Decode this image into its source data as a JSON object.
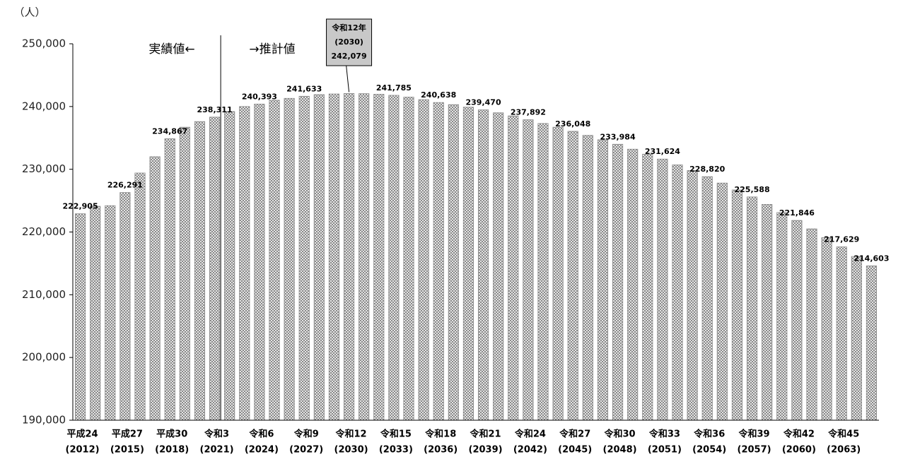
{
  "chart_data": {
    "type": "bar",
    "unit_label": "（人）",
    "annotations": [
      "実績値←",
      "→推計値"
    ],
    "callout": [
      "令和12年",
      "(2030)"
    ],
    "categories": [
      [
        "平成24",
        "(2012)"
      ],
      null,
      null,
      [
        "平成27",
        "(2015)"
      ],
      null,
      null,
      [
        "平成30",
        "(2018)"
      ],
      null,
      null,
      [
        "令和3",
        "(2021)"
      ],
      null,
      null,
      [
        "令和6",
        "(2024)"
      ],
      null,
      null,
      [
        "令和9",
        "(2027)"
      ],
      null,
      null,
      [
        "令和12",
        "(2030)"
      ],
      null,
      null,
      [
        "令和15",
        "(2033)"
      ],
      null,
      null,
      [
        "令和18",
        "(2036)"
      ],
      null,
      null,
      [
        "令和21",
        "(2039)"
      ],
      null,
      null,
      [
        "令和24",
        "(2042)"
      ],
      null,
      null,
      [
        "令和27",
        "(2045)"
      ],
      null,
      null,
      [
        "令和30",
        "(2048)"
      ],
      null,
      null,
      [
        "令和33",
        "(2051)"
      ],
      null,
      null,
      [
        "令和36",
        "(2054)"
      ],
      null,
      null,
      [
        "令和39",
        "(2057)"
      ],
      null,
      null,
      [
        "令和42",
        "(2060)"
      ],
      null,
      null,
      [
        "令和45",
        "(2063)"
      ],
      null,
      null
    ],
    "values": [
      222905,
      224100,
      224200,
      226291,
      229400,
      232000,
      234867,
      236700,
      237600,
      238311,
      239200,
      240000,
      240393,
      241000,
      241300,
      241633,
      241900,
      242000,
      242079,
      242050,
      241950,
      241785,
      241500,
      241100,
      240638,
      240300,
      239900,
      239470,
      239000,
      238500,
      237892,
      237300,
      236700,
      236048,
      235400,
      234700,
      233984,
      233200,
      232400,
      231624,
      230700,
      229800,
      228820,
      227800,
      226700,
      225588,
      224400,
      223100,
      221846,
      220500,
      219100,
      217629,
      216100,
      214603
    ],
    "value_labels": [
      "222,905",
      null,
      null,
      "226,291",
      null,
      null,
      "234,867",
      null,
      null,
      "238,311",
      null,
      null,
      "240,393",
      null,
      null,
      "241,633",
      null,
      null,
      "242,079",
      null,
      null,
      "241,785",
      null,
      null,
      "240,638",
      null,
      null,
      "239,470",
      null,
      null,
      "237,892",
      null,
      null,
      "236,048",
      null,
      null,
      "233,984",
      null,
      null,
      "231,624",
      null,
      null,
      "228,820",
      null,
      null,
      "225,588",
      null,
      null,
      "221,846",
      null,
      null,
      "217,629",
      null,
      "214,603"
    ],
    "color": "#888888",
    "ylim": [
      190000,
      250000
    ],
    "yticks": [
      {
        "value": 190000,
        "label": "190,000"
      },
      {
        "value": 200000,
        "label": "200,000"
      },
      {
        "value": 210000,
        "label": "210,000"
      },
      {
        "value": 220000,
        "label": "220,000"
      },
      {
        "value": 230000,
        "label": "230,000"
      },
      {
        "value": 240000,
        "label": "240,000"
      },
      {
        "value": 250000,
        "label": "250,000"
      }
    ]
  }
}
